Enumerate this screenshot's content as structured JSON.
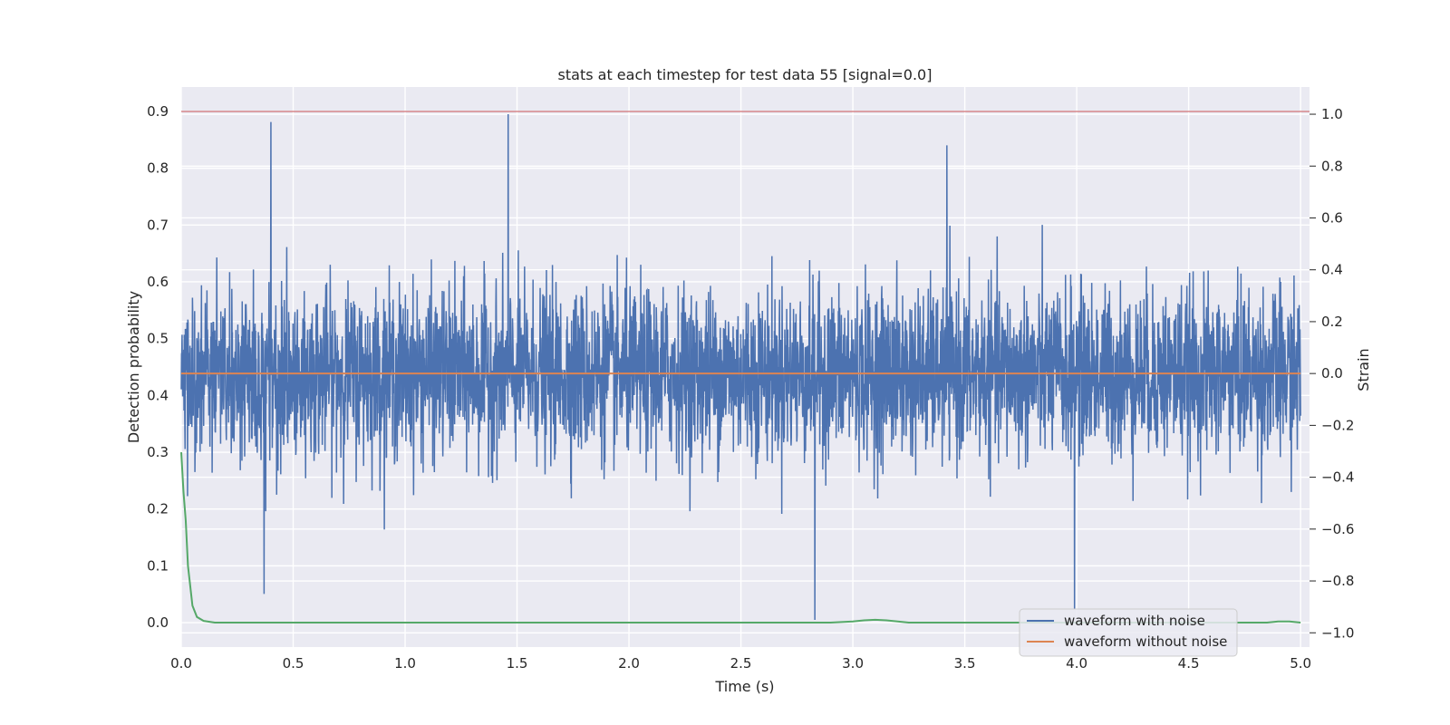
{
  "chart_data": {
    "type": "line",
    "title": "stats at each timestep for test data 55 [signal=0.0]",
    "xlabel": "Time (s)",
    "ylabel": "Detection probability",
    "y2label": "Strain",
    "xlim": [
      0.0,
      5.04
    ],
    "ylim": [
      -0.043,
      0.943
    ],
    "y2lim": [
      -1.055,
      1.105
    ],
    "xticks": [
      "0.0",
      "0.5",
      "1.0",
      "1.5",
      "2.0",
      "2.5",
      "3.0",
      "3.5",
      "4.0",
      "4.5",
      "5.0"
    ],
    "yticks": [
      "0.0",
      "0.1",
      "0.2",
      "0.3",
      "0.4",
      "0.5",
      "0.6",
      "0.7",
      "0.8",
      "0.9"
    ],
    "y2ticks": [
      "−1.0",
      "−0.8",
      "−0.6",
      "−0.4",
      "−0.2",
      "0.0",
      "0.2",
      "0.4",
      "0.6",
      "0.8",
      "1.0"
    ],
    "grid": true,
    "legend_position": "lower-right",
    "colors": {
      "with_noise": "#4c72b0",
      "without_noise": "#dd8452",
      "probability": "#55a868",
      "threshold": "#c44e52",
      "background": "#eaeaf2"
    },
    "series": [
      {
        "name": "waveform with noise",
        "axis": "right",
        "description_t_range": [
          0.0,
          5.0
        ],
        "noise_std": 0.16,
        "extremes": [
          {
            "t": 0.4,
            "v": 0.97
          },
          {
            "t": 1.46,
            "v": 1.0
          },
          {
            "t": 3.42,
            "v": 0.88
          },
          {
            "t": 2.83,
            "v": -0.95
          },
          {
            "t": 3.99,
            "v": -0.91
          },
          {
            "t": 0.37,
            "v": -0.85
          }
        ]
      },
      {
        "name": "waveform without noise",
        "axis": "right",
        "x": [
          0.0,
          5.0
        ],
        "values": [
          0.0,
          0.0
        ]
      },
      {
        "name": "",
        "axis": "left",
        "x": [
          0.0,
          0.01,
          0.02,
          0.03,
          0.05,
          0.07,
          0.1,
          0.15,
          0.3,
          2.9,
          3.0,
          3.05,
          3.1,
          3.15,
          3.25,
          4.85,
          4.9,
          4.95,
          5.0
        ],
        "values": [
          0.3,
          0.23,
          0.18,
          0.1,
          0.03,
          0.01,
          0.003,
          0.0,
          0.0,
          0.0,
          0.002,
          0.004,
          0.005,
          0.004,
          0.0,
          0.0,
          0.002,
          0.002,
          0.0
        ]
      },
      {
        "name": "",
        "axis": "left",
        "x": [
          0.0,
          5.04
        ],
        "values": [
          0.9,
          0.9
        ]
      }
    ],
    "legend": [
      "waveform with noise",
      "waveform without noise"
    ]
  }
}
